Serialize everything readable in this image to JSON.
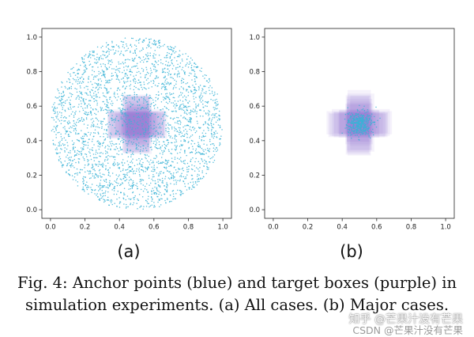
{
  "chart_data": [
    {
      "type": "scatter",
      "panel": "(a)",
      "title": "",
      "xlabel": "",
      "ylabel": "",
      "xlim": [
        -0.05,
        1.05
      ],
      "ylim": [
        -0.05,
        1.05
      ],
      "xticks": [
        0.0,
        0.2,
        0.4,
        0.6,
        0.8,
        1.0
      ],
      "yticks": [
        0.0,
        0.2,
        0.4,
        0.6,
        0.8,
        1.0
      ],
      "tick_labels": [
        "0.0",
        "0.2",
        "0.4",
        "0.6",
        "0.8",
        "1.0"
      ],
      "series": [
        {
          "name": "Anchor points",
          "color": "#3ab3d6",
          "distribution": "uniform disk",
          "center": [
            0.5,
            0.5
          ],
          "radius": 0.5,
          "count": 3000
        },
        {
          "name": "Target boxes",
          "color": "#8f6fd8",
          "shape": "cross of boxes",
          "center": [
            0.5,
            0.5
          ],
          "arm_half_length": 0.17,
          "arm_half_width": 0.08
        }
      ]
    },
    {
      "type": "scatter",
      "panel": "(b)",
      "title": "",
      "xlabel": "",
      "ylabel": "",
      "xlim": [
        -0.05,
        1.05
      ],
      "ylim": [
        -0.05,
        1.05
      ],
      "xticks": [
        0.0,
        0.2,
        0.4,
        0.6,
        0.8,
        1.0
      ],
      "yticks": [
        0.0,
        0.2,
        0.4,
        0.6,
        0.8,
        1.0
      ],
      "tick_labels": [
        "0.0",
        "0.2",
        "0.4",
        "0.6",
        "0.8",
        "1.0"
      ],
      "series": [
        {
          "name": "Anchor points",
          "color": "#3ab3d6",
          "distribution": "small cluster",
          "center": [
            0.5,
            0.5
          ],
          "radius": 0.06,
          "count": 450
        },
        {
          "name": "Target boxes",
          "color": "#8f6fd8",
          "shape": "cross of boxes",
          "center": [
            0.5,
            0.5
          ],
          "arm_half_length": 0.19,
          "arm_half_width": 0.08
        }
      ]
    }
  ],
  "labels": {
    "a": "(a)",
    "b": "(b)"
  },
  "caption": "Fig. 4: Anchor points (blue) and target boxes (purple) in simulation experiments. (a) All cases. (b) Major cases.",
  "watermark": {
    "line1": "知乎 @芒果汁没有芒果",
    "line2": "CSDN @芒果汁没有芒果"
  }
}
